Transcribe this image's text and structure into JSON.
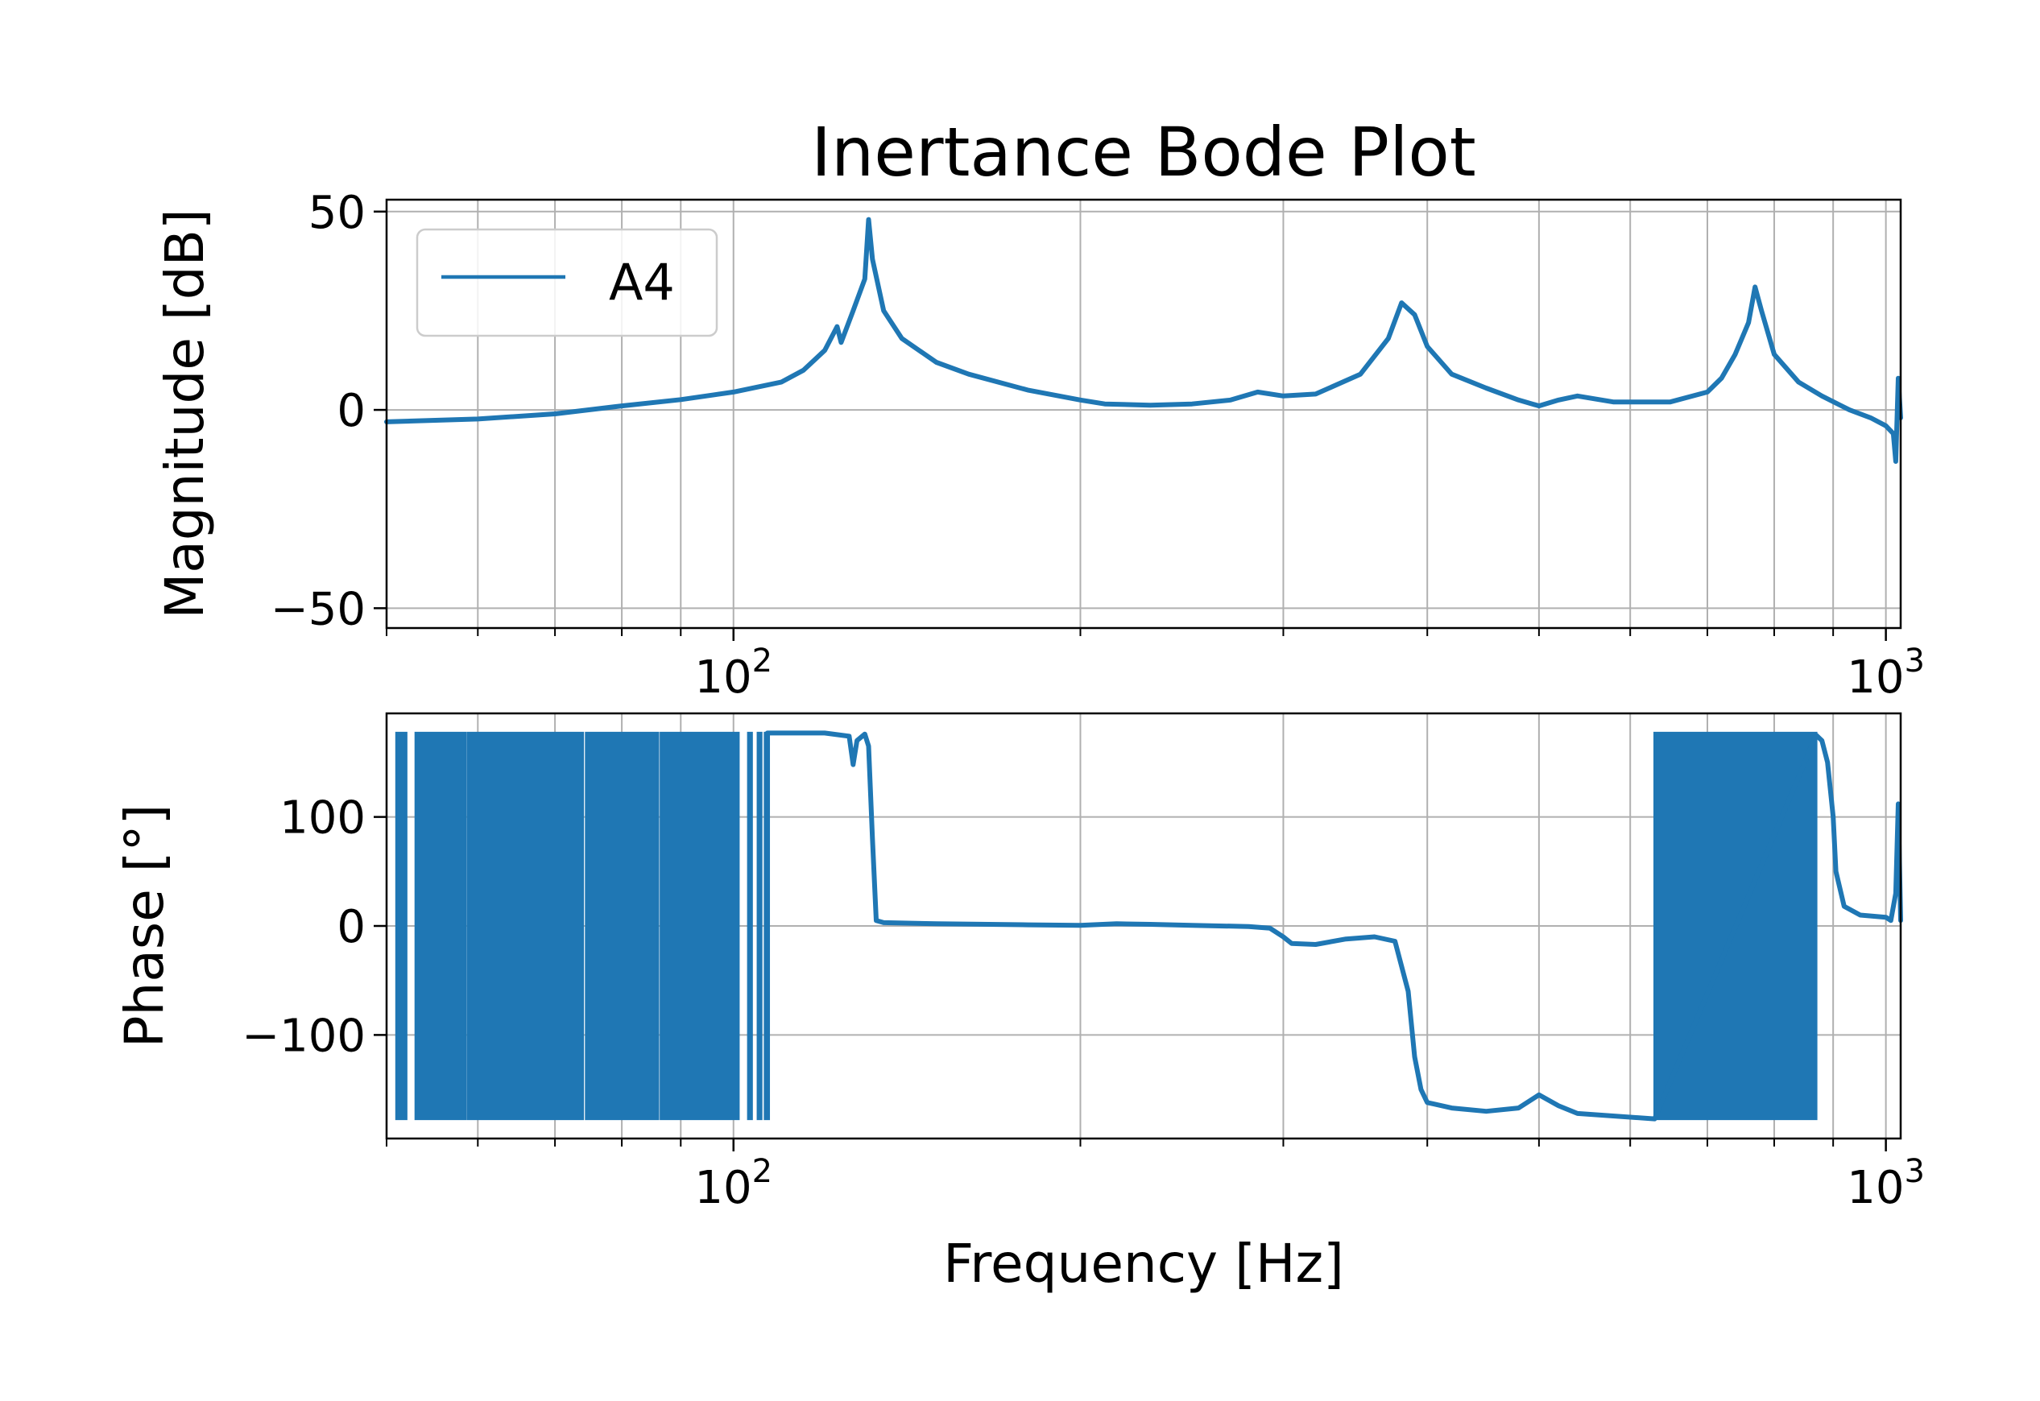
{
  "chart_data": {
    "type": "line",
    "title": "Inertance Bode Plot",
    "xlabel": "Frequency [Hz]",
    "xscale": "log",
    "xlim": [
      50,
      1030
    ],
    "x_ticks": [
      {
        "value": 100,
        "base": "10",
        "exp": "2"
      },
      {
        "value": 1000,
        "base": "10",
        "exp": "3"
      }
    ],
    "grid": true,
    "colors": {
      "series": "#1f77b4",
      "grid": "#b0b0b0",
      "axes": "#000000"
    },
    "legend": {
      "location": "upper-left",
      "entries": [
        "A4"
      ]
    },
    "magnitude": {
      "ylabel": "Magnitude [dB]",
      "ylim": [
        -55,
        53
      ],
      "yticks": [
        {
          "value": 50,
          "label": "50"
        },
        {
          "value": 0,
          "label": "0"
        },
        {
          "value": -50,
          "label": "−50"
        }
      ],
      "series": [
        {
          "name": "A4",
          "points": [
            [
              50,
              -3
            ],
            [
              60,
              -2.3
            ],
            [
              70,
              -1
            ],
            [
              80,
              1
            ],
            [
              90,
              2.6
            ],
            [
              100,
              4.5
            ],
            [
              110,
              7
            ],
            [
              115,
              10
            ],
            [
              120,
              15
            ],
            [
              123,
              21
            ],
            [
              124,
              17
            ],
            [
              127,
              25
            ],
            [
              130,
              33
            ],
            [
              131,
              48
            ],
            [
              132,
              38
            ],
            [
              135,
              25
            ],
            [
              140,
              18
            ],
            [
              150,
              12
            ],
            [
              160,
              9
            ],
            [
              180,
              5
            ],
            [
              200,
              2.5
            ],
            [
              210,
              1.5
            ],
            [
              230,
              1.2
            ],
            [
              250,
              1.5
            ],
            [
              270,
              2.5
            ],
            [
              285,
              4.5
            ],
            [
              300,
              3.5
            ],
            [
              320,
              4
            ],
            [
              350,
              9
            ],
            [
              370,
              18
            ],
            [
              380,
              27
            ],
            [
              390,
              24
            ],
            [
              400,
              16
            ],
            [
              420,
              9
            ],
            [
              450,
              5.5
            ],
            [
              480,
              2.5
            ],
            [
              500,
              1
            ],
            [
              520,
              2.5
            ],
            [
              540,
              3.5
            ],
            [
              580,
              2
            ],
            [
              650,
              2
            ],
            [
              700,
              4.5
            ],
            [
              720,
              8
            ],
            [
              740,
              14
            ],
            [
              760,
              22
            ],
            [
              770,
              31
            ],
            [
              780,
              25
            ],
            [
              800,
              14
            ],
            [
              840,
              7
            ],
            [
              880,
              3.5
            ],
            [
              930,
              0
            ],
            [
              970,
              -2
            ],
            [
              1000,
              -4
            ],
            [
              1015,
              -6
            ],
            [
              1020,
              -13
            ],
            [
              1025,
              8
            ],
            [
              1030,
              -2
            ]
          ]
        }
      ]
    },
    "phase": {
      "ylabel": "Phase [°]",
      "ylim": [
        -195,
        195
      ],
      "yticks": [
        {
          "value": 100,
          "label": "100"
        },
        {
          "value": 0,
          "label": "0"
        },
        {
          "value": -100,
          "label": "−100"
        }
      ],
      "wrap_bands": [
        [
          51,
          52
        ],
        [
          53,
          58.5
        ],
        [
          58.8,
          74
        ],
        [
          74.5,
          86
        ],
        [
          86.5,
          101
        ],
        [
          103,
          103.7
        ],
        [
          105,
          105.7
        ],
        [
          106.5,
          107.3
        ],
        [
          630,
          870
        ]
      ],
      "series": [
        {
          "name": "A4",
          "points": [
            [
              107,
              177
            ],
            [
              120,
              177
            ],
            [
              126,
              174
            ],
            [
              127,
              148
            ],
            [
              128,
              170
            ],
            [
              130,
              176
            ],
            [
              131,
              165
            ],
            [
              132,
              80
            ],
            [
              133,
              5
            ],
            [
              135,
              3
            ],
            [
              150,
              2
            ],
            [
              180,
              1
            ],
            [
              200,
              0.5
            ],
            [
              215,
              2
            ],
            [
              230,
              1.5
            ],
            [
              250,
              0.5
            ],
            [
              280,
              -0.5
            ],
            [
              292,
              -2
            ],
            [
              300,
              -10
            ],
            [
              305,
              -16
            ],
            [
              320,
              -17
            ],
            [
              340,
              -12
            ],
            [
              360,
              -10
            ],
            [
              375,
              -14
            ],
            [
              385,
              -60
            ],
            [
              390,
              -120
            ],
            [
              395,
              -150
            ],
            [
              400,
              -162
            ],
            [
              420,
              -167
            ],
            [
              450,
              -170
            ],
            [
              480,
              -167
            ],
            [
              500,
              -155
            ],
            [
              520,
              -165
            ],
            [
              540,
              -172
            ],
            [
              630,
              -177
            ],
            [
              870,
              175
            ],
            [
              880,
              170
            ],
            [
              890,
              150
            ],
            [
              900,
              100
            ],
            [
              905,
              50
            ],
            [
              920,
              18
            ],
            [
              950,
              10
            ],
            [
              1000,
              8
            ],
            [
              1010,
              5
            ],
            [
              1020,
              30
            ],
            [
              1025,
              112
            ],
            [
              1030,
              5
            ]
          ]
        }
      ]
    }
  }
}
